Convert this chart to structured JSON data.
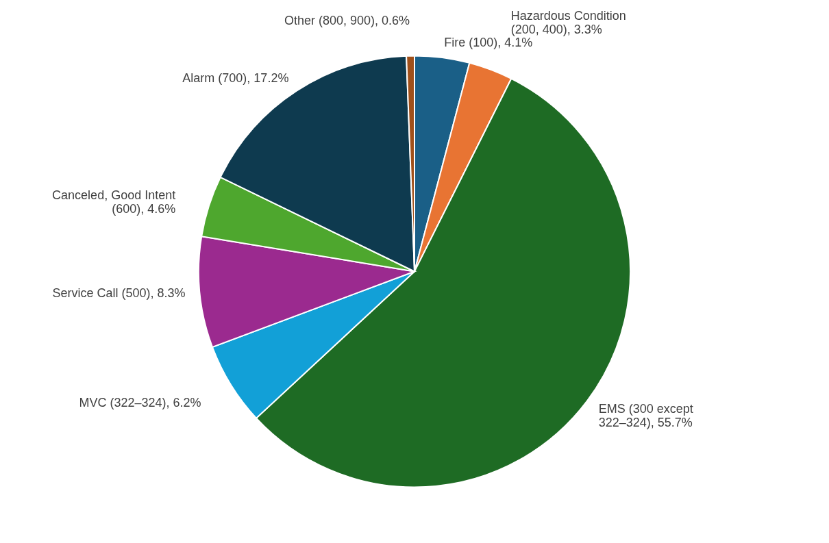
{
  "chart_data": {
    "type": "pie",
    "categories": [
      "Fire (100)",
      "Hazardous Condition (200, 400)",
      "EMS (300 except 322–324)",
      "MVC (322–324)",
      "Service Call (500)",
      "Canceled, Good Intent (600)",
      "Alarm (700)",
      "Other (800, 900)"
    ],
    "values": [
      4.1,
      3.3,
      55.7,
      6.2,
      8.3,
      4.6,
      17.2,
      0.6
    ],
    "colors": [
      "#1a5f87",
      "#e87433",
      "#1e6b24",
      "#12a0d7",
      "#9b2a8f",
      "#4ea72e",
      "#0e3a4f",
      "#a0501a"
    ],
    "value_labels": [
      "4.1%",
      "3.3%",
      "55.7%",
      "6.2%",
      "8.3%",
      "4.6%",
      "17.2%",
      "0.6%"
    ]
  }
}
